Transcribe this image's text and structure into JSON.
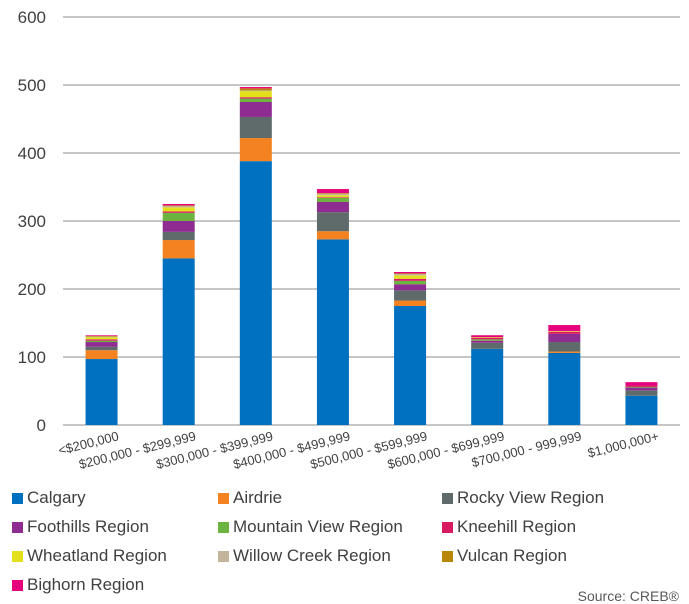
{
  "chart_data": {
    "type": "bar",
    "stacked": true,
    "categories": [
      "<$200,000",
      "$200,000 - $299,999",
      "$300,000 - $399,999",
      "$400,000 - $499,999",
      "$500,000 - $599,999",
      "$600,000 - $699,999",
      "$700,000 - 999,999",
      "$1,000,000+"
    ],
    "ylim": [
      0,
      600
    ],
    "yticks": [
      0,
      100,
      200,
      300,
      400,
      500,
      600
    ],
    "grid": true,
    "legend_position": "bottom",
    "series": [
      {
        "name": "Calgary",
        "color": "#0070C0",
        "values": [
          97,
          245,
          388,
          273,
          175,
          112,
          106,
          43
        ]
      },
      {
        "name": "Airdrie",
        "color": "#F58220",
        "values": [
          13,
          27,
          34,
          12,
          8,
          0,
          2,
          0
        ]
      },
      {
        "name": "Rocky View Region",
        "color": "#5F6A6A",
        "values": [
          5,
          12,
          31,
          28,
          15,
          9,
          14,
          8
        ]
      },
      {
        "name": "Foothills Region",
        "color": "#8E2C91",
        "values": [
          7,
          16,
          22,
          15,
          9,
          3,
          12,
          4
        ]
      },
      {
        "name": "Mountain View Region",
        "color": "#6DB33F",
        "values": [
          2,
          12,
          5,
          6,
          5,
          2,
          0,
          1
        ]
      },
      {
        "name": "Kneehill Region",
        "color": "#D81B60",
        "values": [
          2,
          2,
          2,
          1,
          3,
          2,
          3,
          2
        ]
      },
      {
        "name": "Wheatland Region",
        "color": "#E3E01B",
        "values": [
          3,
          6,
          9,
          3,
          5,
          1,
          1,
          0
        ]
      },
      {
        "name": "Willow Creek Region",
        "color": "#C2B59B",
        "values": [
          1,
          2,
          1,
          2,
          2,
          0,
          0,
          0
        ]
      },
      {
        "name": "Vulcan Region",
        "color": "#B8860B",
        "values": [
          1,
          1,
          3,
          1,
          1,
          0,
          0,
          0
        ]
      },
      {
        "name": "Bighorn Region",
        "color": "#E6007E",
        "values": [
          1,
          2,
          2,
          6,
          2,
          3,
          9,
          5
        ]
      }
    ]
  },
  "source": "Source: CREB®"
}
